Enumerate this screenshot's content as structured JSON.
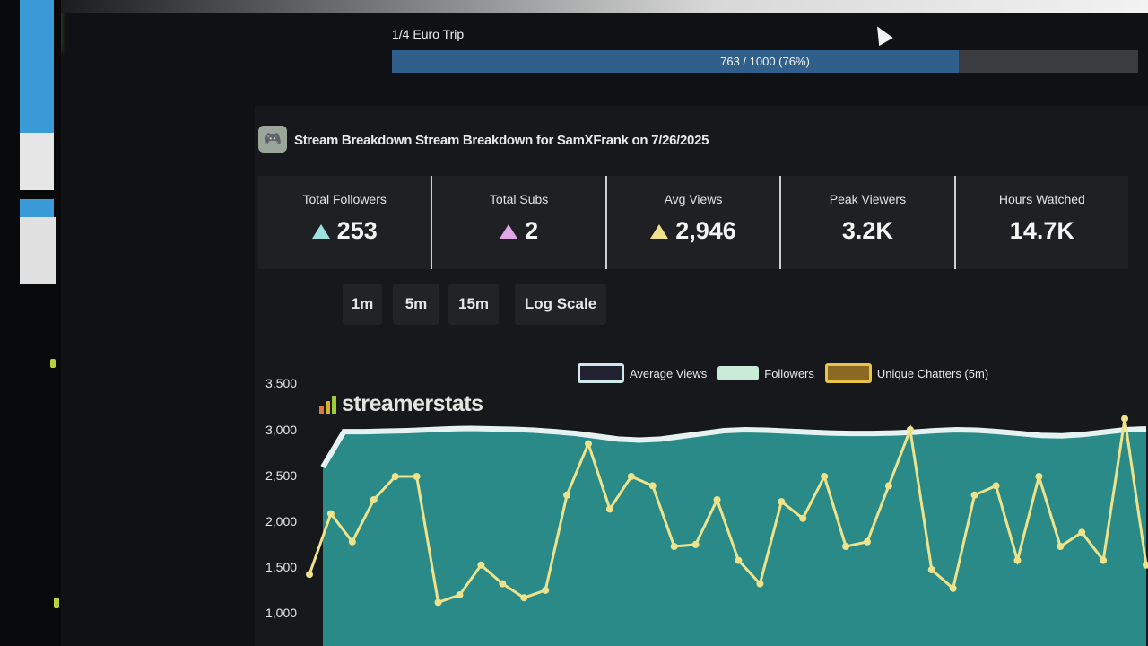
{
  "goal": {
    "title": "1/4 Euro Trip",
    "progress_text": "763 / 1000 (76%)",
    "current": 763,
    "target": 1000,
    "percent": 76
  },
  "header": {
    "title": "Stream Breakdown Stream Breakdown for SamXFrank on 7/26/2025"
  },
  "stats": [
    {
      "label": "Total Followers",
      "value": "253",
      "trend_color": "#9de0e0"
    },
    {
      "label": "Total Subs",
      "value": "2",
      "trend_color": "#e0a6e6"
    },
    {
      "label": "Avg Views",
      "value": "2,946",
      "trend_color": "#f0e08a"
    },
    {
      "label": "Peak Viewers",
      "value": "3.2K"
    },
    {
      "label": "Hours Watched",
      "value": "14.7K"
    }
  ],
  "controls": {
    "btn_1m": "1m",
    "btn_5m": "5m",
    "btn_15m": "15m",
    "btn_log": "Log Scale"
  },
  "watermark": "streamerstats",
  "colors": {
    "accent_green": "#9fe34a",
    "followers_fill": "#2a8a88",
    "avg_views_line": "#e6f2f2",
    "chatters_line": "#eee28a",
    "goal_fill": "#2f5f8a"
  },
  "chart_data": {
    "type": "line",
    "ylim": [
      800,
      3500
    ],
    "yticks": [
      "3,500",
      "3,000",
      "2,500",
      "2,000",
      "1,500",
      "1,000"
    ],
    "legend": [
      "Average Views",
      "Followers",
      "Unique Chatters (5m)"
    ],
    "series": [
      {
        "name": "Average Views",
        "values": [
          2600,
          2980,
          2980,
          2985,
          2990,
          3000,
          3010,
          3015,
          3010,
          3005,
          2995,
          2980,
          2960,
          2930,
          2900,
          2890,
          2900,
          2930,
          2960,
          2990,
          3000,
          2995,
          2985,
          2975,
          2965,
          2960,
          2960,
          2965,
          2975,
          2990,
          3000,
          2995,
          2980,
          2960,
          2940,
          2935,
          2950,
          2975,
          3000,
          3010
        ]
      },
      {
        "name": "Unique Chatters (5m)",
        "values": [
          1450,
          2100,
          1800,
          2250,
          2500,
          2500,
          1150,
          1230,
          1550,
          1350,
          1200,
          1280,
          2300,
          2850,
          2150,
          2500,
          2400,
          1750,
          1770,
          2250,
          1600,
          1350,
          2230,
          2050,
          2500,
          1750,
          1800,
          2400,
          3000,
          1500,
          1300,
          2300,
          2400,
          1600,
          2500,
          1750,
          1900,
          1600,
          3120,
          1550
        ]
      }
    ]
  }
}
